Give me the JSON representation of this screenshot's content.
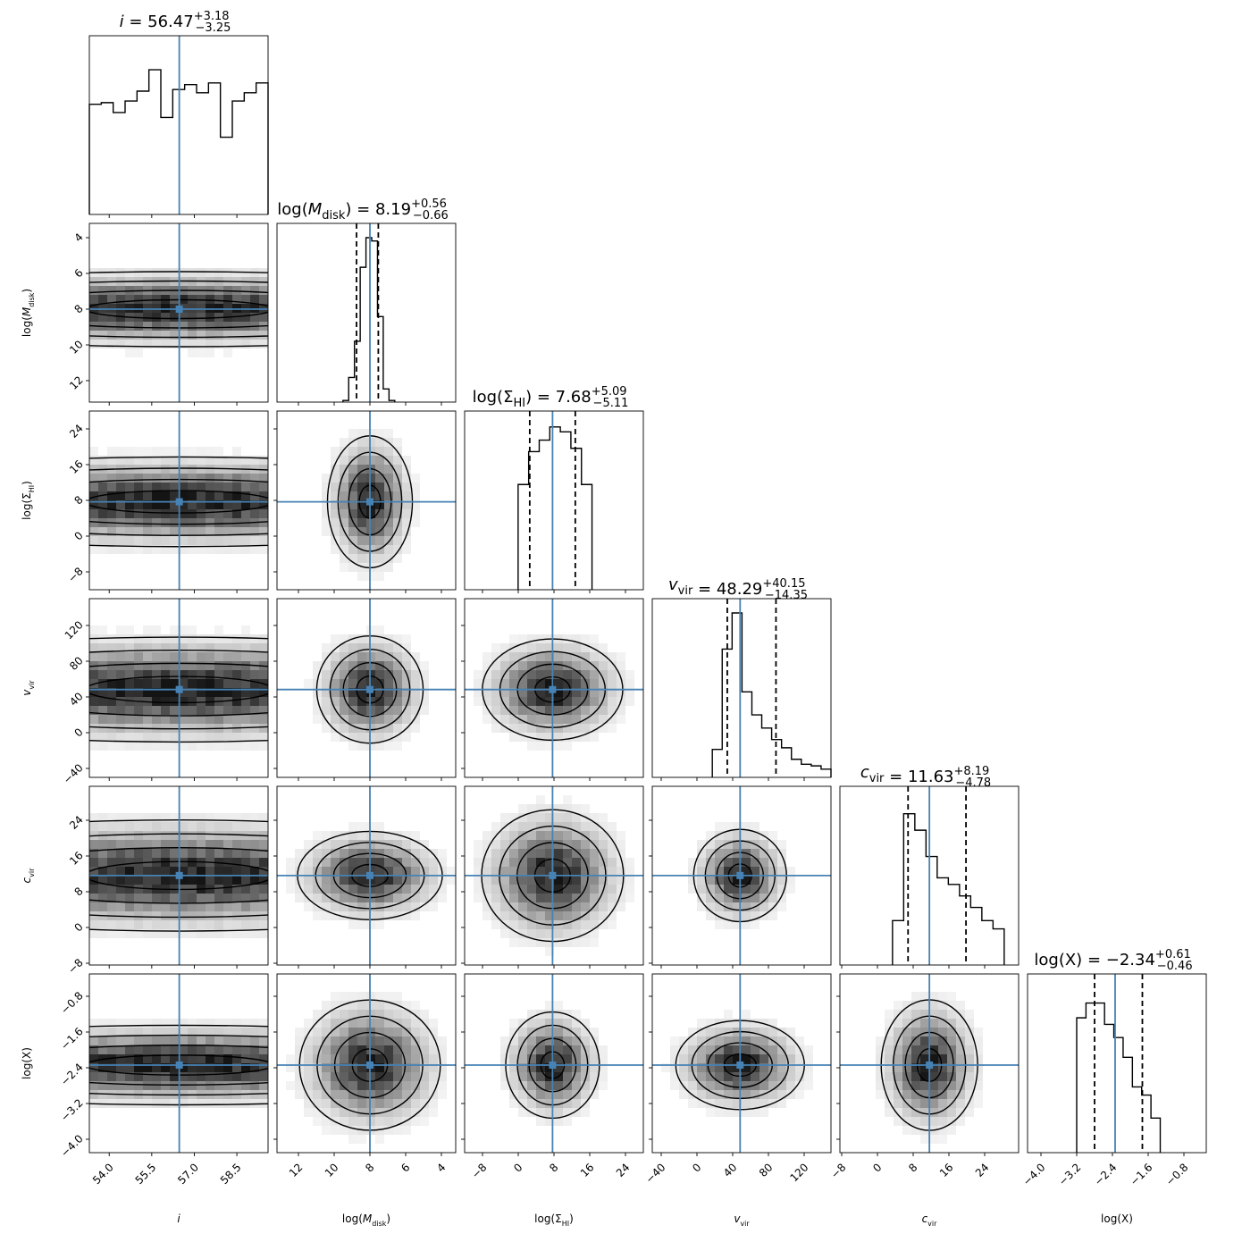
{
  "chart_data": {
    "type": "corner",
    "parameters": [
      {
        "key": "i",
        "axis_label": "i",
        "title": {
          "lhs": "i",
          "median": "56.47",
          "plus": "+3.18",
          "minus": "−3.25"
        },
        "range": [
          53.3,
          59.6
        ],
        "ticks": [
          54.0,
          55.5,
          57.0,
          58.5
        ],
        "tick_labels": [
          "54.0",
          "55.5",
          "57.0",
          "58.5"
        ],
        "reversed": false,
        "truth": 56.47,
        "quantiles": [],
        "hist": [
          0.67,
          0.68,
          0.62,
          0.69,
          0.75,
          0.88,
          0.59,
          0.76,
          0.79,
          0.74,
          0.8,
          0.47,
          0.69,
          0.74,
          0.8
        ]
      },
      {
        "key": "M",
        "axis_label": "log(M_disk)",
        "title": {
          "lhs": "log(M_disk)",
          "median": "8.19",
          "plus": "+0.56",
          "minus": "−0.66"
        },
        "range": [
          3.2,
          13.2
        ],
        "ticks": [
          4,
          6,
          8,
          10,
          12
        ],
        "tick_labels": [
          "4",
          "6",
          "8",
          "10",
          "12"
        ],
        "reversed": true,
        "truth": 8.0,
        "quantiles": [
          7.53,
          8.75
        ],
        "hist": [
          0.01,
          0.08,
          0.52,
          0.98,
          1.0,
          0.82,
          0.37,
          0.15,
          0.01
        ]
      },
      {
        "key": "S",
        "axis_label": "log(Σ_HI)",
        "title": {
          "lhs": "log(Σ_HI)",
          "median": "7.68",
          "plus": "+5.09",
          "minus": "−5.11"
        },
        "range": [
          -12,
          28
        ],
        "ticks": [
          -8,
          0,
          8,
          16,
          24
        ],
        "tick_labels": [
          "−8",
          "0",
          "8",
          "16",
          "24"
        ],
        "reversed": false,
        "truth": 7.68,
        "quantiles": [
          2.57,
          12.77
        ],
        "hist": [
          0.64,
          0.84,
          0.91,
          0.99,
          0.96,
          0.86,
          0.64
        ]
      },
      {
        "key": "V",
        "axis_label": "v_vir",
        "title": {
          "lhs": "v_vir",
          "median": "48.29",
          "plus": "+40.15",
          "minus": "−14.35"
        },
        "range": [
          -50,
          150
        ],
        "ticks": [
          -40,
          0,
          40,
          80,
          120
        ],
        "tick_labels": [
          "−40",
          "0",
          "40",
          "80",
          "120"
        ],
        "reversed": false,
        "truth": 48.29,
        "quantiles": [
          33.94,
          88.44
        ],
        "hist": [
          0.17,
          0.78,
          1.0,
          0.52,
          0.38,
          0.3,
          0.23,
          0.18,
          0.11,
          0.08,
          0.07,
          0.05
        ]
      },
      {
        "key": "C",
        "axis_label": "c_vir",
        "title": {
          "lhs": "c_vir",
          "median": "11.63",
          "plus": "+8.19",
          "minus": "−4.78"
        },
        "range": [
          -8.4,
          31.6
        ],
        "ticks": [
          -8,
          0,
          8,
          16,
          24
        ],
        "tick_labels": [
          "−8",
          "0",
          "8",
          "16",
          "24"
        ],
        "reversed": false,
        "truth": 11.63,
        "quantiles": [
          6.85,
          19.82
        ],
        "hist": [
          0.27,
          0.92,
          0.82,
          0.66,
          0.53,
          0.49,
          0.42,
          0.35,
          0.27,
          0.22
        ]
      },
      {
        "key": "X",
        "axis_label": "log(X)",
        "title": {
          "lhs": "log(X)",
          "median": "−2.34",
          "plus": "+0.61",
          "minus": "−0.46"
        },
        "range": [
          -4.3,
          -0.3
        ],
        "ticks": [
          -4.0,
          -3.2,
          -2.4,
          -1.6,
          -0.8
        ],
        "tick_labels": [
          "−4.0",
          "−3.2",
          "−2.4",
          "−1.6",
          "−0.8"
        ],
        "reversed": false,
        "truth": -2.34,
        "quantiles": [
          -2.8,
          -1.73
        ],
        "hist": [
          0.82,
          0.91,
          0.91,
          0.78,
          0.7,
          0.58,
          0.4,
          0.35,
          0.21
        ]
      }
    ],
    "hist_bins": {
      "i": [
        53.3,
        59.6
      ],
      "M": [
        6.61,
        9.51
      ],
      "S": [
        -0.03,
        16.51
      ],
      "V": [
        17.2,
        150.0
      ],
      "C": [
        3.37,
        28.37
      ],
      "X": [
        -3.2,
        -1.33
      ]
    },
    "truth_color": "#4682b4",
    "contour_levels": 4
  }
}
